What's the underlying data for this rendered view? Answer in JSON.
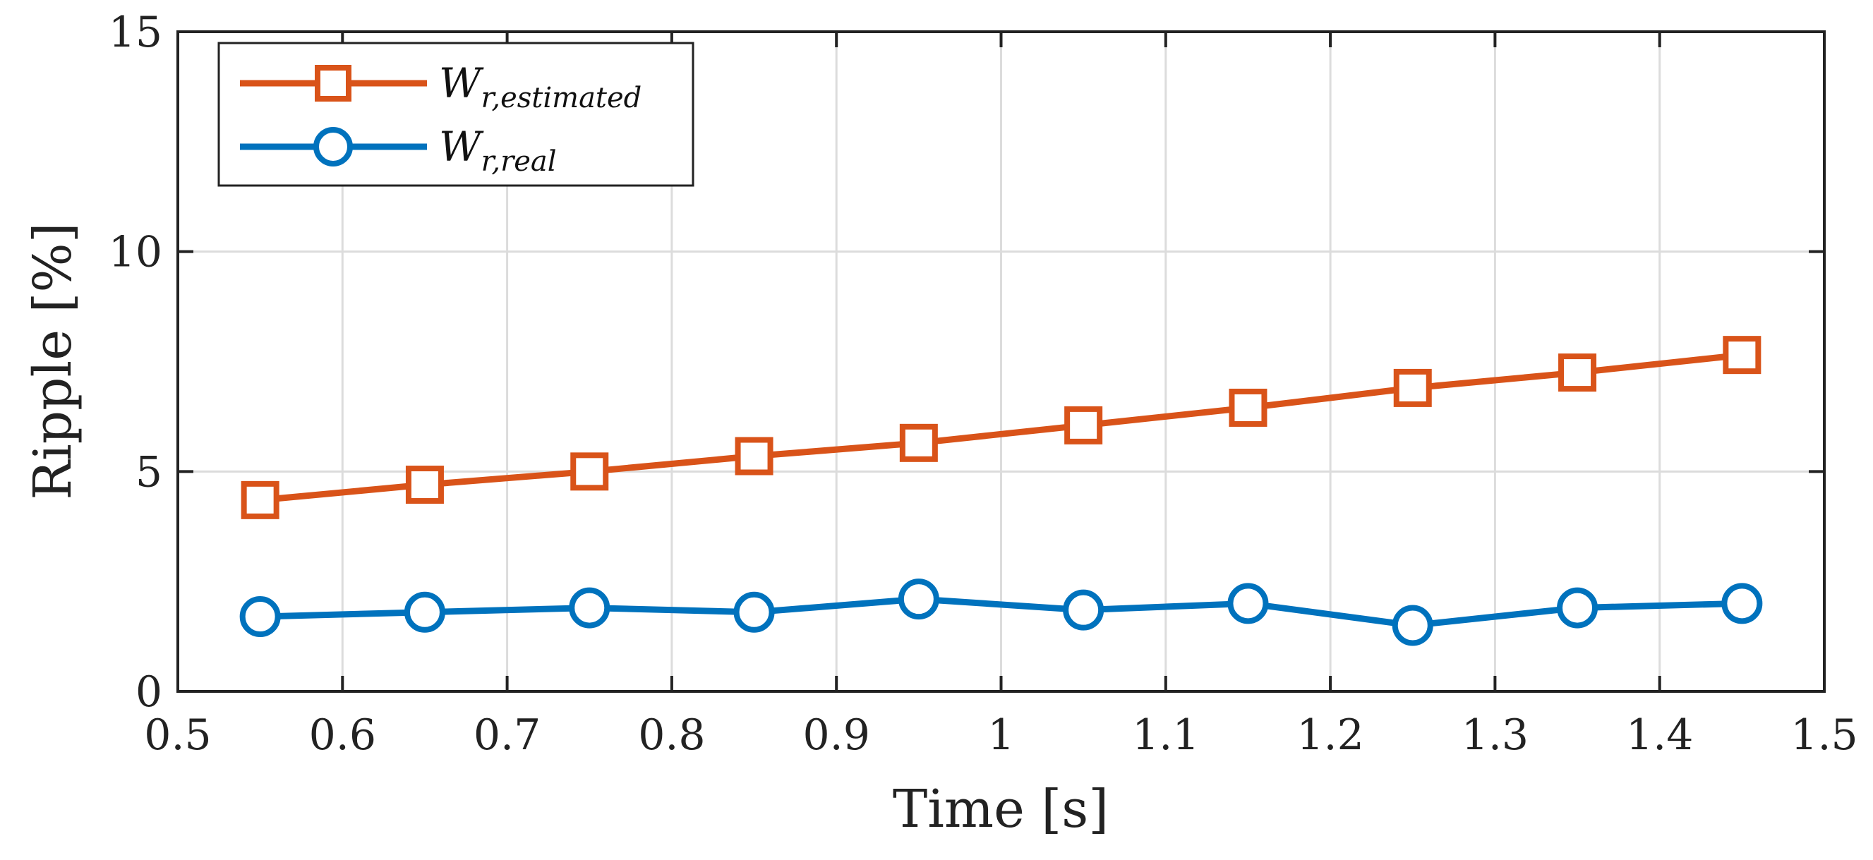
{
  "chart_data": {
    "type": "line",
    "title": "",
    "xlabel": "Time [s]",
    "ylabel": "Ripple [%]",
    "xlim": [
      0.5,
      1.5
    ],
    "ylim": [
      0,
      15
    ],
    "xticks": [
      0.5,
      0.6,
      0.7,
      0.8,
      0.9,
      1.0,
      1.1,
      1.2,
      1.3,
      1.4,
      1.5
    ],
    "xtick_labels": [
      "0.5",
      "0.6",
      "0.7",
      "0.8",
      "0.9",
      "1",
      "1.1",
      "1.2",
      "1.3",
      "1.4",
      "1.5"
    ],
    "yticks": [
      0,
      5,
      10,
      15
    ],
    "ytick_labels": [
      "0",
      "5",
      "10",
      "15"
    ],
    "grid": true,
    "legend_position": "top-left",
    "x": [
      0.55,
      0.65,
      0.75,
      0.85,
      0.95,
      1.05,
      1.15,
      1.25,
      1.35,
      1.45
    ],
    "series": [
      {
        "name": "W_r,estimated",
        "legend_main": "W",
        "legend_sub": "r,estimated",
        "marker": "square",
        "color": "#D95319",
        "values": [
          4.35,
          4.7,
          5.0,
          5.35,
          5.65,
          6.05,
          6.45,
          6.9,
          7.25,
          7.65
        ]
      },
      {
        "name": "W_r,real",
        "legend_main": "W",
        "legend_sub": "r,real",
        "marker": "circle",
        "color": "#0072BD",
        "values": [
          1.7,
          1.8,
          1.9,
          1.8,
          2.1,
          1.85,
          2.0,
          1.5,
          1.9,
          2.0
        ]
      }
    ]
  }
}
